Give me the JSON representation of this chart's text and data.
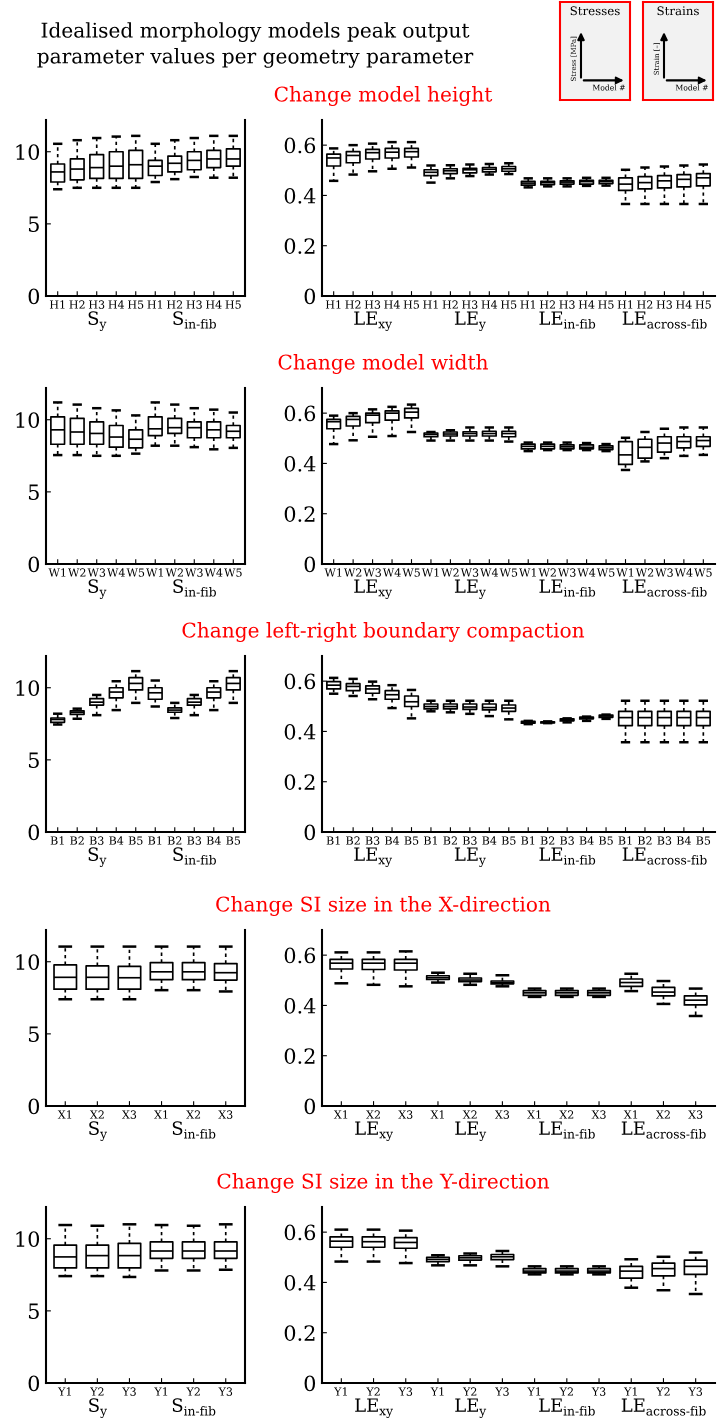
{
  "chart_data": [
    {
      "type": "other",
      "title": "Idealised morphology models peak output\nparameter values per geometry parameter",
      "annotations": [
        "Stresses",
        "Stress [MPa]",
        "Model #",
        "Strains",
        "Strain [–]",
        "Model #"
      ]
    },
    {
      "type": "other",
      "title": "Change model height"
    },
    {
      "type": "box",
      "categories": [
        "H1",
        "H2",
        "H3",
        "H4",
        "H5",
        "H1",
        "H2",
        "H3",
        "H4",
        "H5"
      ],
      "ylim": [
        0,
        12.2
      ],
      "yticks": [
        0,
        5,
        10
      ],
      "annotations": [
        "S$_{y}$",
        "S$_{in-fib}$"
      ],
      "boxes": [
        {
          "low": 7.4,
          "q1": 7.9,
          "median": 8.6,
          "q3": 9.15,
          "high": 10.55
        },
        {
          "low": 7.5,
          "q1": 8.05,
          "median": 8.8,
          "q3": 9.5,
          "high": 10.8
        },
        {
          "low": 7.5,
          "q1": 8.15,
          "median": 8.9,
          "q3": 9.8,
          "high": 10.95
        },
        {
          "low": 7.5,
          "q1": 8.15,
          "median": 9.0,
          "q3": 10.0,
          "high": 11.05
        },
        {
          "low": 7.5,
          "q1": 8.15,
          "median": 9.1,
          "q3": 10.1,
          "high": 11.1
        },
        {
          "low": 7.9,
          "q1": 8.35,
          "median": 9.0,
          "q3": 9.4,
          "high": 10.55
        },
        {
          "low": 8.1,
          "q1": 8.6,
          "median": 9.2,
          "q3": 9.7,
          "high": 10.8
        },
        {
          "low": 8.25,
          "q1": 8.75,
          "median": 9.4,
          "q3": 10.0,
          "high": 10.95
        },
        {
          "low": 8.2,
          "q1": 8.9,
          "median": 9.5,
          "q3": 10.1,
          "high": 11.1
        },
        {
          "low": 8.2,
          "q1": 9.0,
          "median": 9.5,
          "q3": 10.2,
          "high": 11.1
        }
      ]
    },
    {
      "type": "box",
      "categories": [
        "H1",
        "H2",
        "H3",
        "H4",
        "H5",
        "H1",
        "H2",
        "H3",
        "H4",
        "H5",
        "H1",
        "H2",
        "H3",
        "H4",
        "H5",
        "H1",
        "H2",
        "H3",
        "H4",
        "H5"
      ],
      "ylim": [
        0,
        0.7
      ],
      "yticks": [
        0,
        0.2,
        0.4,
        0.6
      ],
      "annotations": [
        "LE$_{xy}$",
        "LE$_{y}$",
        "LE$_{in-fib}$",
        "LE$_{across-fib}$"
      ],
      "boxes": [
        {
          "low": 0.458,
          "q1": 0.517,
          "median": 0.549,
          "q3": 0.564,
          "high": 0.587
        },
        {
          "low": 0.483,
          "q1": 0.53,
          "median": 0.559,
          "q3": 0.574,
          "high": 0.6
        },
        {
          "low": 0.496,
          "q1": 0.545,
          "median": 0.57,
          "q3": 0.583,
          "high": 0.606
        },
        {
          "low": 0.506,
          "q1": 0.549,
          "median": 0.572,
          "q3": 0.587,
          "high": 0.612
        },
        {
          "low": 0.511,
          "q1": 0.553,
          "median": 0.574,
          "q3": 0.587,
          "high": 0.612
        },
        {
          "low": 0.451,
          "q1": 0.479,
          "median": 0.492,
          "q3": 0.502,
          "high": 0.519
        },
        {
          "low": 0.468,
          "q1": 0.487,
          "median": 0.498,
          "q3": 0.506,
          "high": 0.52
        },
        {
          "low": 0.477,
          "q1": 0.49,
          "median": 0.502,
          "q3": 0.508,
          "high": 0.523
        },
        {
          "low": 0.483,
          "q1": 0.494,
          "median": 0.504,
          "q3": 0.511,
          "high": 0.525
        },
        {
          "low": 0.485,
          "q1": 0.496,
          "median": 0.506,
          "q3": 0.515,
          "high": 0.528
        },
        {
          "low": 0.432,
          "q1": 0.441,
          "median": 0.449,
          "q3": 0.456,
          "high": 0.468
        },
        {
          "low": 0.436,
          "q1": 0.443,
          "median": 0.451,
          "q3": 0.456,
          "high": 0.468
        },
        {
          "low": 0.436,
          "q1": 0.445,
          "median": 0.453,
          "q3": 0.458,
          "high": 0.468
        },
        {
          "low": 0.438,
          "q1": 0.445,
          "median": 0.455,
          "q3": 0.46,
          "high": 0.47
        },
        {
          "low": 0.439,
          "q1": 0.447,
          "median": 0.455,
          "q3": 0.46,
          "high": 0.47
        },
        {
          "low": 0.366,
          "q1": 0.42,
          "median": 0.445,
          "q3": 0.47,
          "high": 0.502
        },
        {
          "low": 0.366,
          "q1": 0.426,
          "median": 0.451,
          "q3": 0.475,
          "high": 0.511
        },
        {
          "low": 0.366,
          "q1": 0.43,
          "median": 0.458,
          "q3": 0.479,
          "high": 0.515
        },
        {
          "low": 0.366,
          "q1": 0.434,
          "median": 0.464,
          "q3": 0.483,
          "high": 0.519
        },
        {
          "low": 0.366,
          "q1": 0.438,
          "median": 0.47,
          "q3": 0.487,
          "high": 0.523
        }
      ]
    },
    {
      "type": "other",
      "title": "Change model width"
    },
    {
      "type": "box",
      "categories": [
        "W1",
        "W2",
        "W3",
        "W4",
        "W5",
        "W1",
        "W2",
        "W3",
        "W4",
        "W5"
      ],
      "ylim": [
        0,
        12.2
      ],
      "yticks": [
        0,
        5,
        10
      ],
      "annotations": [
        "S$_{y}$",
        "S$_{in-fib}$"
      ],
      "boxes": [
        {
          "low": 7.55,
          "q1": 8.3,
          "median": 9.3,
          "q3": 10.2,
          "high": 11.2
        },
        {
          "low": 7.55,
          "q1": 8.3,
          "median": 9.15,
          "q3": 10.1,
          "high": 11.05
        },
        {
          "low": 7.5,
          "q1": 8.3,
          "median": 9.05,
          "q3": 9.85,
          "high": 10.8
        },
        {
          "low": 7.5,
          "q1": 8.1,
          "median": 8.8,
          "q3": 9.6,
          "high": 10.65
        },
        {
          "low": 7.65,
          "q1": 8.05,
          "median": 8.65,
          "q3": 9.3,
          "high": 10.3
        },
        {
          "low": 8.2,
          "q1": 8.9,
          "median": 9.37,
          "q3": 10.2,
          "high": 11.2
        },
        {
          "low": 8.2,
          "q1": 9.05,
          "median": 9.45,
          "q3": 10.1,
          "high": 11.05
        },
        {
          "low": 8.1,
          "q1": 8.75,
          "median": 9.45,
          "q3": 9.85,
          "high": 10.8
        },
        {
          "low": 7.95,
          "q1": 8.75,
          "median": 9.3,
          "q3": 9.85,
          "high": 10.7
        },
        {
          "low": 8.05,
          "q1": 8.75,
          "median": 9.2,
          "q3": 9.6,
          "high": 10.5
        }
      ]
    },
    {
      "type": "box",
      "categories": [
        "W1",
        "W2",
        "W3",
        "W4",
        "W5",
        "W1",
        "W2",
        "W3",
        "W4",
        "W5",
        "W1",
        "W2",
        "W3",
        "W4",
        "W5",
        "W1",
        "W2",
        "W3",
        "W4",
        "W5"
      ],
      "ylim": [
        0,
        0.7
      ],
      "yticks": [
        0,
        0.2,
        0.4,
        0.6
      ],
      "annotations": [
        "LE$_{xy}$",
        "LE$_{y}$",
        "LE$_{in-fib}$",
        "LE$_{across-fib}$"
      ],
      "boxes": [
        {
          "low": 0.477,
          "q1": 0.538,
          "median": 0.566,
          "q3": 0.575,
          "high": 0.59
        },
        {
          "low": 0.492,
          "q1": 0.549,
          "median": 0.575,
          "q3": 0.587,
          "high": 0.6
        },
        {
          "low": 0.506,
          "q1": 0.562,
          "median": 0.592,
          "q3": 0.6,
          "high": 0.615
        },
        {
          "low": 0.509,
          "q1": 0.572,
          "median": 0.6,
          "q3": 0.609,
          "high": 0.625
        },
        {
          "low": 0.525,
          "q1": 0.581,
          "median": 0.604,
          "q3": 0.619,
          "high": 0.634
        },
        {
          "low": 0.491,
          "q1": 0.506,
          "median": 0.515,
          "q3": 0.521,
          "high": 0.525
        },
        {
          "low": 0.491,
          "q1": 0.509,
          "median": 0.517,
          "q3": 0.525,
          "high": 0.532
        },
        {
          "low": 0.491,
          "q1": 0.509,
          "median": 0.519,
          "q3": 0.526,
          "high": 0.543
        },
        {
          "low": 0.491,
          "q1": 0.509,
          "median": 0.519,
          "q3": 0.528,
          "high": 0.543
        },
        {
          "low": 0.487,
          "q1": 0.506,
          "median": 0.519,
          "q3": 0.528,
          "high": 0.543
        },
        {
          "low": 0.449,
          "q1": 0.458,
          "median": 0.468,
          "q3": 0.477,
          "high": 0.483
        },
        {
          "low": 0.453,
          "q1": 0.458,
          "median": 0.468,
          "q3": 0.477,
          "high": 0.483
        },
        {
          "low": 0.453,
          "q1": 0.458,
          "median": 0.466,
          "q3": 0.474,
          "high": 0.483
        },
        {
          "low": 0.453,
          "q1": 0.458,
          "median": 0.464,
          "q3": 0.474,
          "high": 0.481
        },
        {
          "low": 0.449,
          "q1": 0.455,
          "median": 0.462,
          "q3": 0.47,
          "high": 0.477
        },
        {
          "low": 0.374,
          "q1": 0.396,
          "median": 0.434,
          "q3": 0.487,
          "high": 0.502
        },
        {
          "low": 0.408,
          "q1": 0.421,
          "median": 0.464,
          "q3": 0.496,
          "high": 0.525
        },
        {
          "low": 0.421,
          "q1": 0.445,
          "median": 0.481,
          "q3": 0.506,
          "high": 0.538
        },
        {
          "low": 0.43,
          "q1": 0.462,
          "median": 0.487,
          "q3": 0.506,
          "high": 0.543
        },
        {
          "low": 0.434,
          "q1": 0.468,
          "median": 0.491,
          "q3": 0.506,
          "high": 0.543
        }
      ]
    },
    {
      "type": "other",
      "title": "Change left-right boundary compaction"
    },
    {
      "type": "box",
      "categories": [
        "B1",
        "B2",
        "B3",
        "B4",
        "B5",
        "B1",
        "B2",
        "B3",
        "B4",
        "B5"
      ],
      "ylim": [
        0,
        12.2
      ],
      "yticks": [
        0,
        5,
        10
      ],
      "annotations": [
        "S$_{y}$",
        "S$_{in-fib}$"
      ],
      "boxes": [
        {
          "low": 7.45,
          "q1": 7.6,
          "median": 7.8,
          "q3": 7.9,
          "high": 8.2
        },
        {
          "low": 7.85,
          "q1": 8.15,
          "median": 8.3,
          "q3": 8.4,
          "high": 8.55
        },
        {
          "low": 8.1,
          "q1": 8.8,
          "median": 9.0,
          "q3": 9.25,
          "high": 9.5
        },
        {
          "low": 8.45,
          "q1": 9.3,
          "median": 9.7,
          "q3": 10.0,
          "high": 10.45
        },
        {
          "low": 8.95,
          "q1": 9.85,
          "median": 10.3,
          "q3": 10.7,
          "high": 11.15
        },
        {
          "low": 8.7,
          "q1": 9.2,
          "median": 9.65,
          "q3": 10.0,
          "high": 10.5
        },
        {
          "low": 7.9,
          "q1": 8.3,
          "median": 8.45,
          "q3": 8.6,
          "high": 8.95
        },
        {
          "low": 8.1,
          "q1": 8.8,
          "median": 9.0,
          "q3": 9.25,
          "high": 9.5
        },
        {
          "low": 8.45,
          "q1": 9.3,
          "median": 9.7,
          "q3": 10.0,
          "high": 10.45
        },
        {
          "low": 8.95,
          "q1": 9.85,
          "median": 10.3,
          "q3": 10.7,
          "high": 11.15
        }
      ]
    },
    {
      "type": "box",
      "categories": [
        "B1",
        "B2",
        "B3",
        "B4",
        "B5",
        "B1",
        "B2",
        "B3",
        "B4",
        "B5",
        "B1",
        "B2",
        "B3",
        "B4",
        "B5",
        "B1",
        "B2",
        "B3",
        "B4",
        "B5"
      ],
      "ylim": [
        0,
        0.7
      ],
      "yticks": [
        0,
        0.2,
        0.4,
        0.6
      ],
      "annotations": [
        "LE$_{xy}$",
        "LE$_{y}$",
        "LE$_{in-fib}$",
        "LE$_{across-fib}$"
      ],
      "boxes": [
        {
          "low": 0.55,
          "q1": 0.569,
          "median": 0.584,
          "q3": 0.598,
          "high": 0.613
        },
        {
          "low": 0.541,
          "q1": 0.562,
          "median": 0.579,
          "q3": 0.59,
          "high": 0.609
        },
        {
          "low": 0.528,
          "q1": 0.552,
          "median": 0.569,
          "q3": 0.581,
          "high": 0.598
        },
        {
          "low": 0.493,
          "q1": 0.528,
          "median": 0.546,
          "q3": 0.562,
          "high": 0.584
        },
        {
          "low": 0.452,
          "q1": 0.499,
          "median": 0.518,
          "q3": 0.541,
          "high": 0.565
        },
        {
          "low": 0.48,
          "q1": 0.49,
          "median": 0.499,
          "q3": 0.509,
          "high": 0.522
        },
        {
          "low": 0.476,
          "q1": 0.49,
          "median": 0.499,
          "q3": 0.509,
          "high": 0.522
        },
        {
          "low": 0.47,
          "q1": 0.488,
          "median": 0.497,
          "q3": 0.509,
          "high": 0.522
        },
        {
          "low": 0.461,
          "q1": 0.486,
          "median": 0.495,
          "q3": 0.509,
          "high": 0.522
        },
        {
          "low": 0.448,
          "q1": 0.48,
          "median": 0.493,
          "q3": 0.505,
          "high": 0.522
        },
        {
          "low": 0.429,
          "q1": 0.433,
          "median": 0.436,
          "q3": 0.44,
          "high": 0.442
        },
        {
          "low": 0.433,
          "q1": 0.434,
          "median": 0.436,
          "q3": 0.438,
          "high": 0.44
        },
        {
          "low": 0.436,
          "q1": 0.442,
          "median": 0.446,
          "q3": 0.45,
          "high": 0.452
        },
        {
          "low": 0.442,
          "q1": 0.45,
          "median": 0.454,
          "q3": 0.457,
          "high": 0.459
        },
        {
          "low": 0.45,
          "q1": 0.456,
          "median": 0.461,
          "q3": 0.465,
          "high": 0.467
        },
        {
          "low": 0.357,
          "q1": 0.423,
          "median": 0.455,
          "q3": 0.48,
          "high": 0.522
        },
        {
          "low": 0.357,
          "q1": 0.423,
          "median": 0.455,
          "q3": 0.48,
          "high": 0.522
        },
        {
          "low": 0.357,
          "q1": 0.423,
          "median": 0.455,
          "q3": 0.48,
          "high": 0.522
        },
        {
          "low": 0.357,
          "q1": 0.423,
          "median": 0.455,
          "q3": 0.48,
          "high": 0.522
        },
        {
          "low": 0.357,
          "q1": 0.423,
          "median": 0.455,
          "q3": 0.48,
          "high": 0.522
        }
      ]
    },
    {
      "type": "other",
      "title": "Change SI size in the X-direction"
    },
    {
      "type": "box",
      "categories": [
        "X1",
        "X2",
        "X3",
        "X1",
        "X2",
        "X3"
      ],
      "ylim": [
        0,
        12.2
      ],
      "yticks": [
        0,
        5,
        10
      ],
      "annotations": [
        "S$_{y}$",
        "S$_{in-fib}$"
      ],
      "boxes": [
        {
          "low": 7.4,
          "q1": 8.1,
          "median": 8.92,
          "q3": 9.78,
          "high": 11.05
        },
        {
          "low": 7.4,
          "q1": 8.1,
          "median": 8.92,
          "q3": 9.71,
          "high": 11.05
        },
        {
          "low": 7.4,
          "q1": 8.1,
          "median": 8.89,
          "q3": 9.68,
          "high": 11.05
        },
        {
          "low": 8.03,
          "q1": 8.76,
          "median": 9.3,
          "q3": 9.94,
          "high": 11.05
        },
        {
          "low": 8.03,
          "q1": 8.76,
          "median": 9.3,
          "q3": 9.94,
          "high": 11.05
        },
        {
          "low": 7.94,
          "q1": 8.73,
          "median": 9.24,
          "q3": 9.87,
          "high": 11.05
        }
      ]
    },
    {
      "type": "box",
      "categories": [
        "X1",
        "X2",
        "X3",
        "X1",
        "X2",
        "X3",
        "X1",
        "X2",
        "X3",
        "X1",
        "X2",
        "X3"
      ],
      "ylim": [
        0,
        0.7
      ],
      "yticks": [
        0,
        0.2,
        0.4,
        0.6
      ],
      "annotations": [
        "LE$_{xy}$",
        "LE$_{y}$",
        "LE$_{in-fib}$",
        "LE$_{across-fib}$"
      ],
      "boxes": [
        {
          "low": 0.488,
          "q1": 0.545,
          "median": 0.568,
          "q3": 0.583,
          "high": 0.611
        },
        {
          "low": 0.482,
          "q1": 0.543,
          "median": 0.568,
          "q3": 0.583,
          "high": 0.611
        },
        {
          "low": 0.476,
          "q1": 0.541,
          "median": 0.568,
          "q3": 0.583,
          "high": 0.615
        },
        {
          "low": 0.491,
          "q1": 0.503,
          "median": 0.51,
          "q3": 0.518,
          "high": 0.53
        },
        {
          "low": 0.482,
          "q1": 0.495,
          "median": 0.501,
          "q3": 0.509,
          "high": 0.526
        },
        {
          "low": 0.476,
          "q1": 0.486,
          "median": 0.491,
          "q3": 0.497,
          "high": 0.52
        },
        {
          "low": 0.434,
          "q1": 0.44,
          "median": 0.45,
          "q3": 0.459,
          "high": 0.467
        },
        {
          "low": 0.434,
          "q1": 0.44,
          "median": 0.45,
          "q3": 0.459,
          "high": 0.467
        },
        {
          "low": 0.434,
          "q1": 0.44,
          "median": 0.45,
          "q3": 0.459,
          "high": 0.467
        },
        {
          "low": 0.457,
          "q1": 0.476,
          "median": 0.491,
          "q3": 0.505,
          "high": 0.526
        },
        {
          "low": 0.406,
          "q1": 0.438,
          "median": 0.453,
          "q3": 0.472,
          "high": 0.497
        },
        {
          "low": 0.358,
          "q1": 0.402,
          "median": 0.421,
          "q3": 0.438,
          "high": 0.467
        }
      ]
    },
    {
      "type": "other",
      "title": "Change SI size in the Y-direction"
    },
    {
      "type": "box",
      "categories": [
        "Y1",
        "Y2",
        "Y3",
        "Y1",
        "Y2",
        "Y3"
      ],
      "ylim": [
        0,
        12.2
      ],
      "yticks": [
        0,
        5,
        10
      ],
      "annotations": [
        "S$_{y}$",
        "S$_{in-fib}$"
      ],
      "boxes": [
        {
          "low": 7.41,
          "q1": 7.98,
          "median": 8.74,
          "q3": 9.56,
          "high": 10.95
        },
        {
          "low": 7.41,
          "q1": 7.98,
          "median": 8.83,
          "q3": 9.56,
          "high": 10.9
        },
        {
          "low": 7.35,
          "q1": 7.98,
          "median": 8.83,
          "q3": 9.68,
          "high": 11.0
        },
        {
          "low": 7.8,
          "q1": 8.64,
          "median": 9.15,
          "q3": 9.78,
          "high": 10.95
        },
        {
          "low": 7.8,
          "q1": 8.64,
          "median": 9.15,
          "q3": 9.78,
          "high": 10.9
        },
        {
          "low": 7.85,
          "q1": 8.64,
          "median": 9.15,
          "q3": 9.78,
          "high": 11.0
        }
      ]
    },
    {
      "type": "box",
      "categories": [
        "Y1",
        "Y2",
        "Y3",
        "Y1",
        "Y2",
        "Y3",
        "Y1",
        "Y2",
        "Y3",
        "Y1",
        "Y2",
        "Y3"
      ],
      "ylim": [
        0,
        0.7
      ],
      "yticks": [
        0,
        0.2,
        0.4,
        0.6
      ],
      "annotations": [
        "LE$_{xy}$",
        "LE$_{y}$",
        "LE$_{in-fib}$",
        "LE$_{across-fib}$"
      ],
      "boxes": [
        {
          "low": 0.483,
          "q1": 0.54,
          "median": 0.564,
          "q3": 0.581,
          "high": 0.61
        },
        {
          "low": 0.483,
          "q1": 0.54,
          "median": 0.562,
          "q3": 0.581,
          "high": 0.61
        },
        {
          "low": 0.477,
          "q1": 0.536,
          "median": 0.559,
          "q3": 0.578,
          "high": 0.606
        },
        {
          "low": 0.468,
          "q1": 0.483,
          "median": 0.492,
          "q3": 0.5,
          "high": 0.508
        },
        {
          "low": 0.468,
          "q1": 0.489,
          "median": 0.498,
          "q3": 0.506,
          "high": 0.515
        },
        {
          "low": 0.464,
          "q1": 0.491,
          "median": 0.502,
          "q3": 0.511,
          "high": 0.525
        },
        {
          "low": 0.432,
          "q1": 0.438,
          "median": 0.445,
          "q3": 0.455,
          "high": 0.464
        },
        {
          "low": 0.432,
          "q1": 0.438,
          "median": 0.445,
          "q3": 0.455,
          "high": 0.464
        },
        {
          "low": 0.432,
          "q1": 0.438,
          "median": 0.445,
          "q3": 0.455,
          "high": 0.464
        },
        {
          "low": 0.379,
          "q1": 0.417,
          "median": 0.445,
          "q3": 0.464,
          "high": 0.492
        },
        {
          "low": 0.369,
          "q1": 0.426,
          "median": 0.455,
          "q3": 0.477,
          "high": 0.502
        },
        {
          "low": 0.354,
          "q1": 0.432,
          "median": 0.464,
          "q3": 0.489,
          "high": 0.519
        }
      ]
    }
  ]
}
